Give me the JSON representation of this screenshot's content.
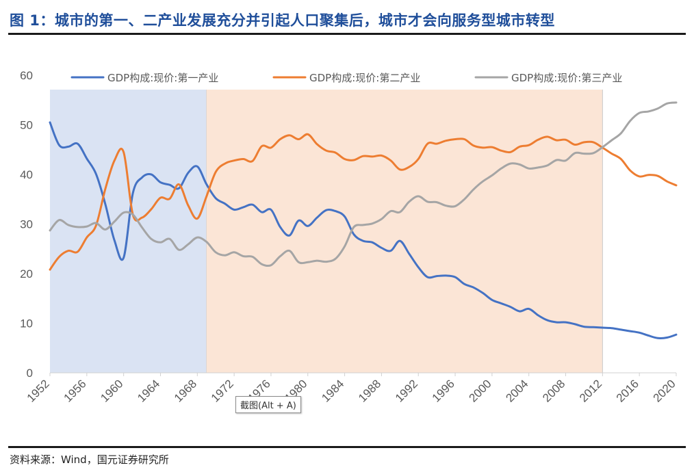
{
  "header": {
    "title": "图 1：城市的第一、二产业发展充分并引起人口聚集后，城市才会向服务型城市转型"
  },
  "footer": {
    "source": "资料来源：Wind，国元证券研究所"
  },
  "tooltip": {
    "text": "截图(Alt + A)"
  },
  "colors": {
    "primary": "#4472c4",
    "secondary": "#ed7d31",
    "tertiary": "#a5a5a5",
    "band_blue": "#dae3f3",
    "band_orange": "#fbe5d6"
  },
  "chart_data": {
    "type": "line",
    "ylim": [
      0,
      60
    ],
    "yticks": [
      0,
      10,
      20,
      30,
      40,
      50,
      60
    ],
    "xlim": [
      1952,
      2020
    ],
    "xticks": [
      1952,
      1956,
      1960,
      1964,
      1968,
      1972,
      1976,
      1980,
      1984,
      1988,
      1992,
      1996,
      2000,
      2004,
      2008,
      2012,
      2016,
      2020
    ],
    "grid": false,
    "legend_position": "top",
    "shaded_periods": [
      {
        "start": 1952,
        "end": 1969,
        "color": "#dae3f3"
      },
      {
        "start": 1969,
        "end": 2012,
        "color": "#fbe5d6"
      }
    ],
    "x": [
      1952,
      1953,
      1954,
      1955,
      1956,
      1957,
      1958,
      1959,
      1960,
      1961,
      1962,
      1963,
      1964,
      1965,
      1966,
      1967,
      1968,
      1969,
      1970,
      1971,
      1972,
      1973,
      1974,
      1975,
      1976,
      1977,
      1978,
      1979,
      1980,
      1981,
      1982,
      1983,
      1984,
      1985,
      1986,
      1987,
      1988,
      1989,
      1990,
      1991,
      1992,
      1993,
      1994,
      1995,
      1996,
      1997,
      1998,
      1999,
      2000,
      2001,
      2002,
      2003,
      2004,
      2005,
      2006,
      2007,
      2008,
      2009,
      2010,
      2011,
      2012,
      2013,
      2014,
      2015,
      2016,
      2017,
      2018,
      2019,
      2020
    ],
    "series": [
      {
        "name": "GDP构成:现价:第一产业",
        "color": "#4472c4",
        "values": [
          50.5,
          45.9,
          45.6,
          46.2,
          43.2,
          40.1,
          34.1,
          26.7,
          23.2,
          36.2,
          39.4,
          40.0,
          38.4,
          37.9,
          37.2,
          40.3,
          41.6,
          38.0,
          35.2,
          34.1,
          32.9,
          33.4,
          33.9,
          32.4,
          32.9,
          29.4,
          27.7,
          30.7,
          29.6,
          31.3,
          32.8,
          32.6,
          31.5,
          27.9,
          26.6,
          26.3,
          25.2,
          24.6,
          26.6,
          24.0,
          21.3,
          19.3,
          19.5,
          19.6,
          19.3,
          17.9,
          17.2,
          16.1,
          14.7,
          14.0,
          13.3,
          12.4,
          12.9,
          11.6,
          10.6,
          10.2,
          10.2,
          9.8,
          9.3,
          9.2,
          9.1,
          9.0,
          8.7,
          8.4,
          8.1,
          7.5,
          7.0,
          7.1,
          7.7
        ]
      },
      {
        "name": "GDP构成:现价:第二产业",
        "color": "#ed7d31",
        "values": [
          20.8,
          23.4,
          24.6,
          24.4,
          27.3,
          29.7,
          37.0,
          42.8,
          44.5,
          31.9,
          31.3,
          33.0,
          35.3,
          35.1,
          38.0,
          33.8,
          31.1,
          35.6,
          40.5,
          42.2,
          42.8,
          43.1,
          42.7,
          45.7,
          45.4,
          47.1,
          47.9,
          47.1,
          48.1,
          46.1,
          44.8,
          44.4,
          43.1,
          42.9,
          43.7,
          43.6,
          43.8,
          42.8,
          41.0,
          41.5,
          43.1,
          46.2,
          46.2,
          46.8,
          47.1,
          47.1,
          45.8,
          45.4,
          45.5,
          44.8,
          44.5,
          45.6,
          45.9,
          47.0,
          47.6,
          46.9,
          47.0,
          46.0,
          46.5,
          46.5,
          45.4,
          44.2,
          43.1,
          40.8,
          39.6,
          39.9,
          39.7,
          38.6,
          37.8
        ]
      },
      {
        "name": "GDP构成:现价:第三产业",
        "color": "#a5a5a5",
        "values": [
          28.7,
          30.8,
          29.8,
          29.4,
          29.5,
          30.2,
          28.9,
          30.5,
          32.3,
          31.9,
          29.3,
          27.0,
          26.3,
          27.0,
          24.8,
          25.9,
          27.3,
          26.4,
          24.3,
          23.7,
          24.3,
          23.5,
          23.4,
          21.9,
          21.7,
          23.5,
          24.6,
          22.3,
          22.3,
          22.6,
          22.4,
          23.0,
          25.5,
          29.4,
          29.8,
          30.1,
          31.0,
          32.6,
          32.4,
          34.5,
          35.6,
          34.5,
          34.4,
          33.7,
          33.6,
          35.0,
          37.0,
          38.6,
          39.8,
          41.2,
          42.2,
          42.0,
          41.2,
          41.4,
          41.8,
          42.9,
          42.8,
          44.3,
          44.2,
          44.3,
          45.5,
          46.9,
          48.3,
          50.8,
          52.4,
          52.7,
          53.3,
          54.3,
          54.5
        ]
      }
    ]
  }
}
